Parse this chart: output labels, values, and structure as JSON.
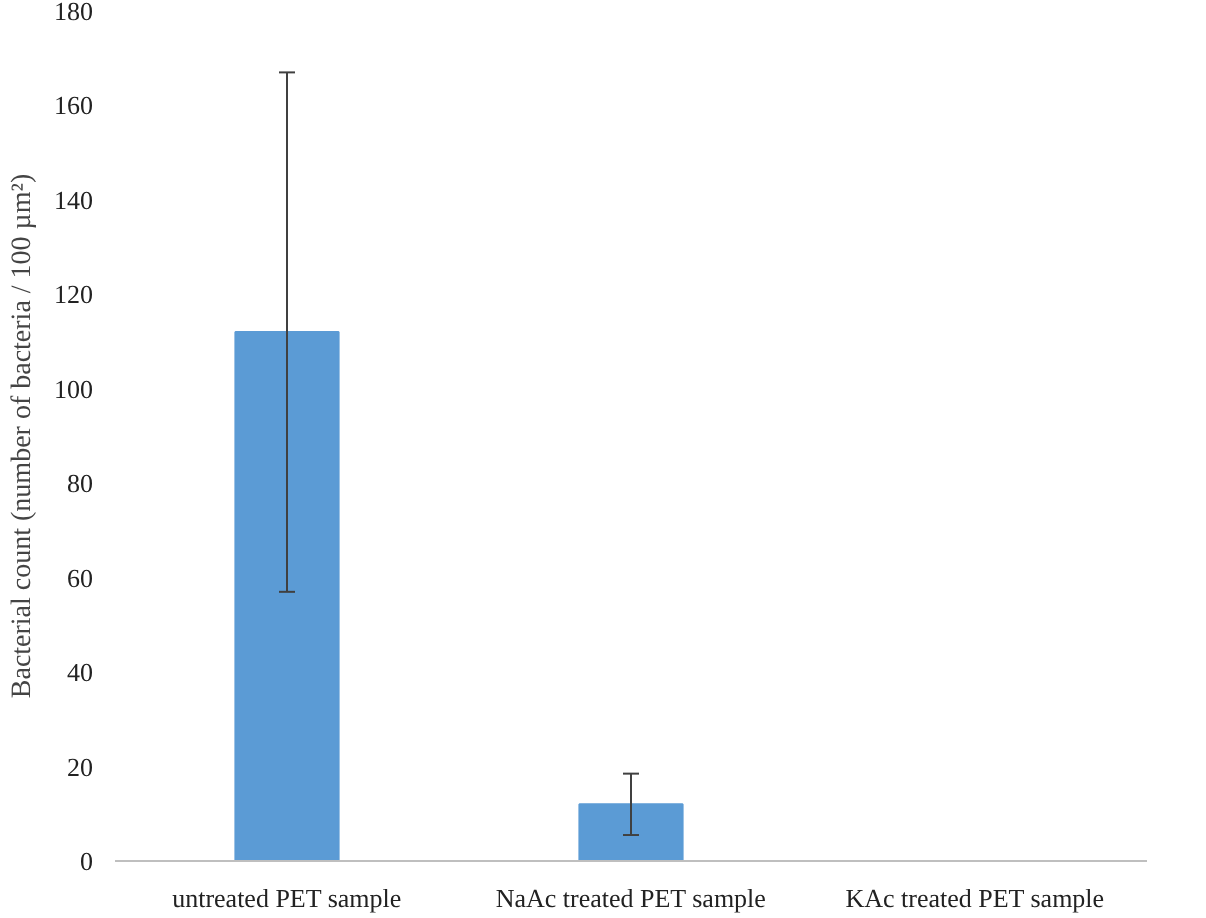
{
  "chart_data": {
    "type": "bar",
    "ylabel": "Bacterial count (number of bacteria / 100 µm²)",
    "categories": [
      "untreated PET sample",
      "NaAc treated PET sample",
      "KAc treated PET sample"
    ],
    "values": [
      112,
      12,
      0
    ],
    "errors": [
      55,
      6.5,
      null
    ],
    "color": "#5b9bd5",
    "ylim": [
      0,
      180
    ],
    "yticks": [
      0,
      20,
      40,
      60,
      80,
      100,
      120,
      140,
      160,
      180
    ],
    "grid": false
  }
}
